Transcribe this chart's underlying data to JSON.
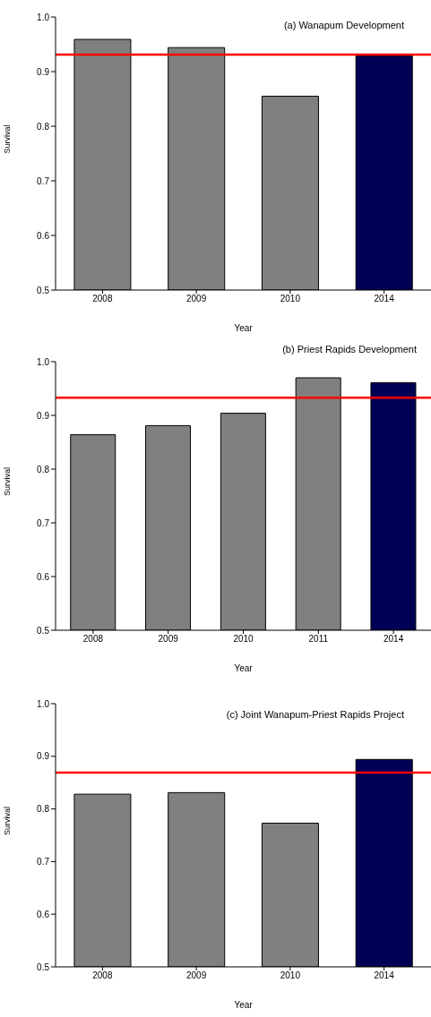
{
  "chart_data": [
    {
      "type": "bar",
      "title": "(a) Wanapum Development",
      "xlabel": "Year",
      "ylabel": "Survival",
      "categories": [
        "2008",
        "2009",
        "2010",
        "2014"
      ],
      "values": [
        0.959,
        0.944,
        0.855,
        0.929
      ],
      "colors": [
        "#808080",
        "#808080",
        "#808080",
        "#000055"
      ],
      "ylim": [
        0.5,
        1.0
      ],
      "yticks": [
        {
          "value": 0.5,
          "label": "0.5"
        },
        {
          "value": 0.6,
          "label": "0.6"
        },
        {
          "value": 0.7,
          "label": "0.7"
        },
        {
          "value": 0.8,
          "label": "0.8"
        },
        {
          "value": 0.9,
          "label": "0.9"
        },
        {
          "value": 1.0,
          "label": "1.0"
        }
      ],
      "ref_lines": [
        {
          "axis": "y",
          "value": 0.931,
          "color": "#ff0000"
        }
      ],
      "grid": false,
      "legend": false
    },
    {
      "type": "bar",
      "title": "(b) Priest Rapids Development",
      "xlabel": "Year",
      "ylabel": "Survival",
      "categories": [
        "2008",
        "2009",
        "2010",
        "2011",
        "2014"
      ],
      "values": [
        0.864,
        0.881,
        0.904,
        0.97,
        0.961
      ],
      "colors": [
        "#808080",
        "#808080",
        "#808080",
        "#808080",
        "#000055"
      ],
      "ylim": [
        0.5,
        1.0
      ],
      "yticks": [
        {
          "value": 0.5,
          "label": "0.5"
        },
        {
          "value": 0.6,
          "label": "0.6"
        },
        {
          "value": 0.7,
          "label": "0.7"
        },
        {
          "value": 0.8,
          "label": "0.8"
        },
        {
          "value": 0.9,
          "label": "0.9"
        },
        {
          "value": 1.0,
          "label": "1.0"
        }
      ],
      "ref_lines": [
        {
          "axis": "y",
          "value": 0.933,
          "color": "#ff0000"
        }
      ],
      "grid": false,
      "legend": false
    },
    {
      "type": "bar",
      "title": "(c) Joint Wanapum-Priest Rapids Project",
      "xlabel": "Year",
      "ylabel": "Survival",
      "categories": [
        "2008",
        "2009",
        "2010",
        "2014"
      ],
      "values": [
        0.828,
        0.831,
        0.773,
        0.894
      ],
      "colors": [
        "#808080",
        "#808080",
        "#808080",
        "#000055"
      ],
      "ylim": [
        0.5,
        1.0
      ],
      "yticks": [
        {
          "value": 0.5,
          "label": "0.5"
        },
        {
          "value": 0.6,
          "label": "0.6"
        },
        {
          "value": 0.7,
          "label": "0.7"
        },
        {
          "value": 0.8,
          "label": "0.8"
        },
        {
          "value": 0.9,
          "label": "0.9"
        },
        {
          "value": 1.0,
          "label": "1.0"
        }
      ],
      "ref_lines": [
        {
          "axis": "y",
          "value": 0.869,
          "color": "#ff0000"
        }
      ],
      "grid": false,
      "legend": false
    }
  ]
}
